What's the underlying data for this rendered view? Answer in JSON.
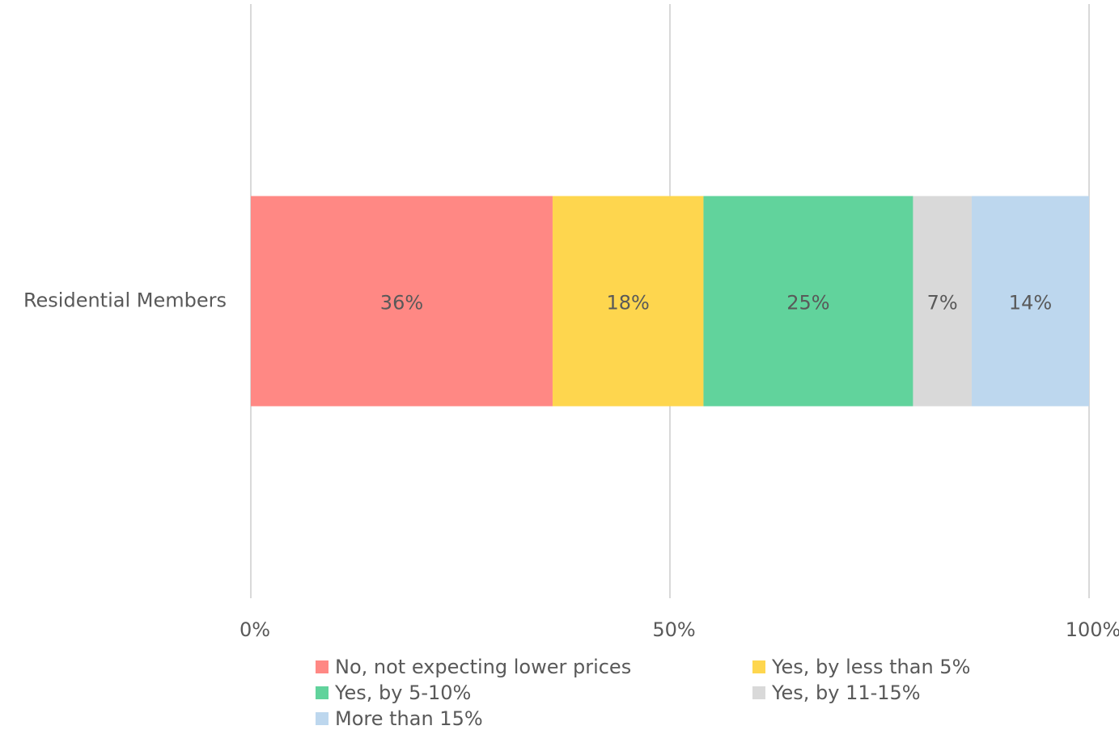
{
  "chart_data": {
    "type": "stacked_bar_horizontal",
    "categories": [
      "Residential Members"
    ],
    "series": [
      {
        "name": "No, not expecting lower prices",
        "color": "#ff8884",
        "values": [
          36
        ],
        "value_labels": [
          "36%"
        ]
      },
      {
        "name": "Yes, by less than 5%",
        "color": "#fed64e",
        "values": [
          18
        ],
        "value_labels": [
          "18%"
        ]
      },
      {
        "name": "Yes, by 5-10%",
        "color": "#61d39c",
        "values": [
          25
        ],
        "value_labels": [
          "25%"
        ]
      },
      {
        "name": "Yes, by 11-15%",
        "color": "#d9d9d9",
        "values": [
          7
        ],
        "value_labels": [
          "7%"
        ]
      },
      {
        "name": "More than 15%",
        "color": "#bdd7ee",
        "values": [
          14
        ],
        "value_labels": [
          "14%"
        ]
      }
    ],
    "xlim": [
      0,
      100
    ],
    "xticks": [
      {
        "value": 0,
        "label": "0%"
      },
      {
        "value": 50,
        "label": "50%"
      },
      {
        "value": 100,
        "label": "100%"
      }
    ],
    "grid": true,
    "legend": "bottom"
  }
}
